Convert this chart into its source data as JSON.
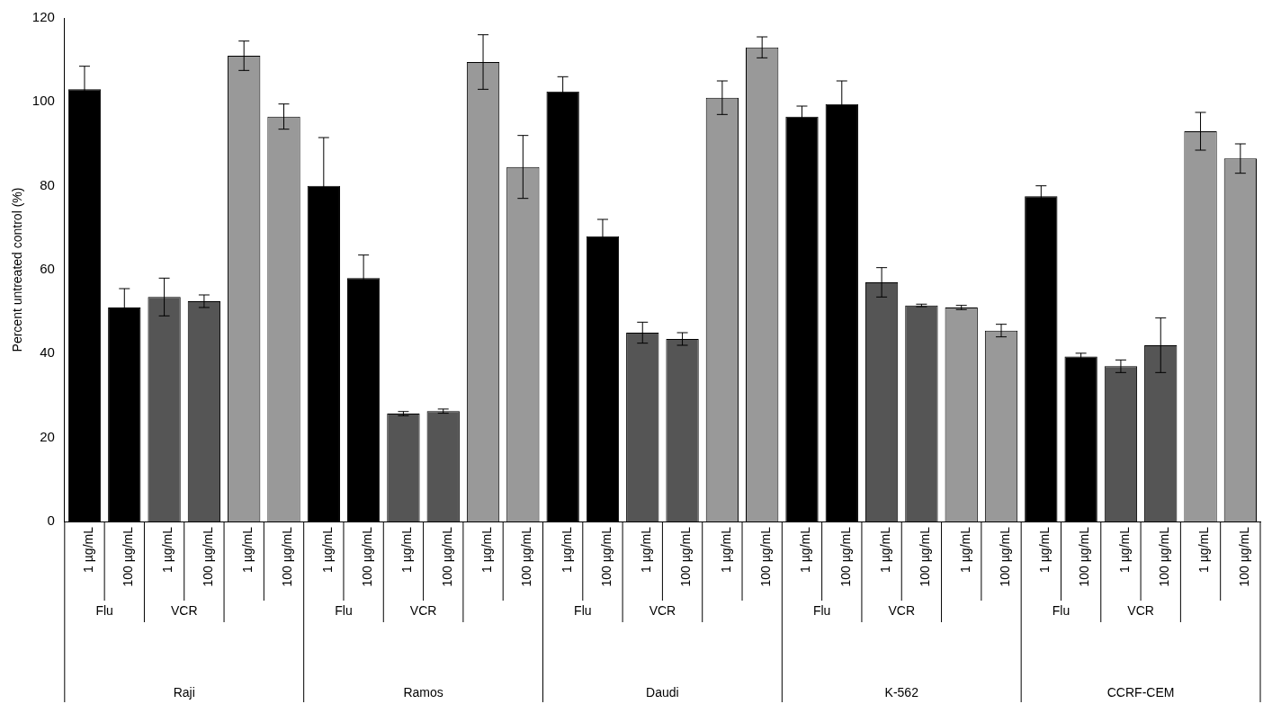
{
  "chart_data": {
    "type": "bar",
    "ylabel": "Percent untreated control (%)",
    "categories": [
      "1 µg/mL",
      "100 µg/mL",
      "1 µg/mL",
      "100 µg/mL",
      "1 µg/mL",
      "100 µg/mL",
      "1 µg/mL",
      "100 µg/mL",
      "1 µg/mL",
      "100 µg/mL",
      "1 µg/mL",
      "100 µg/mL",
      "1 µg/mL",
      "100 µg/mL",
      "1 µg/mL",
      "100 µg/mL",
      "1 µg/mL",
      "100 µg/mL",
      "1 µg/mL",
      "100 µg/mL",
      "1 µg/mL",
      "100 µg/mL",
      "1 µg/mL",
      "100 µg/mL",
      "1 µg/mL",
      "100 µg/mL",
      "1 µg/mL",
      "100 µg/mL",
      "1 µg/mL",
      "100 µg/mL"
    ],
    "values": [
      103,
      51,
      53.5,
      52.5,
      111,
      96.5,
      80,
      58,
      25.7,
      26.3,
      109.5,
      84.5,
      102.5,
      68,
      45,
      43.5,
      101,
      113,
      96.5,
      99.5,
      57,
      51.5,
      51,
      45.5,
      77.5,
      39.3,
      37,
      42,
      93,
      86.5
    ],
    "errors": [
      5.5,
      4.5,
      4.5,
      1.5,
      3.5,
      3,
      11.5,
      5.5,
      0.5,
      0.5,
      6.5,
      7.5,
      3.5,
      4,
      2.5,
      1.5,
      4,
      2.5,
      2.5,
      5.5,
      3.5,
      0.3,
      0.5,
      1.5,
      2.5,
      0.8,
      1.5,
      6.5,
      4.5,
      3.5
    ],
    "colors": [
      "#000000",
      "#000000",
      "#555555",
      "#555555",
      "#999999",
      "#999999",
      "#000000",
      "#000000",
      "#555555",
      "#555555",
      "#999999",
      "#999999",
      "#000000",
      "#000000",
      "#555555",
      "#555555",
      "#999999",
      "#999999",
      "#000000",
      "#000000",
      "#555555",
      "#555555",
      "#999999",
      "#999999",
      "#000000",
      "#000000",
      "#555555",
      "#555555",
      "#999999",
      "#999999"
    ],
    "annotations": [
      "Flu",
      "VCR",
      "Flu",
      "VCR",
      "Flu",
      "VCR",
      "Flu",
      "VCR",
      "Flu",
      "VCR",
      "Raji",
      "Ramos",
      "Daudi",
      "K-562",
      "CCRF-CEM"
    ],
    "ylim": [
      0,
      120
    ],
    "yticks": [
      0,
      20,
      40,
      60,
      80,
      100,
      120
    ],
    "grid": false,
    "legend": false
  }
}
